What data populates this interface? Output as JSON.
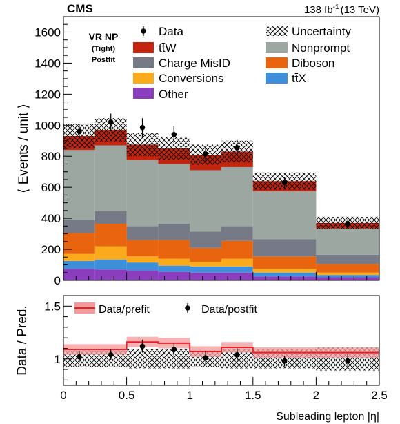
{
  "header": {
    "experiment": "CMS",
    "lumi_prefix": "138 fb",
    "lumi_exp": "-1",
    "lumi_suffix": "(13 TeV)"
  },
  "region": {
    "line1": "VR NP",
    "line2": "(Tight)",
    "line3": "Postfit"
  },
  "axes": {
    "xlabel": "Subleading lepton |η|",
    "ylabel_top": "⟨ Events / unit ⟩",
    "ylabel_bottom": "Data / Pred."
  },
  "legend_top": {
    "data": "Data",
    "uncertainty": "Uncertainty",
    "ttw": "tt̄W",
    "nonprompt": "Nonprompt",
    "chargemisid": "Charge MisID",
    "diboson": "Diboson",
    "conversions": "Conversions",
    "ttx": "tt̄X",
    "other": "Other"
  },
  "legend_bottom": {
    "prefit": "Data/prefit",
    "postfit": "Data/postfit"
  },
  "colors": {
    "other": "#8a3dbd",
    "ttx": "#3d8fd9",
    "conversions": "#fbaa1b",
    "diboson": "#e8640e",
    "chargemisid": "#767a87",
    "nonprompt": "#9da7a1",
    "ttw": "#c3250e",
    "prefit_band": "#f49a9a",
    "prefit_line": "#e8202a"
  },
  "chart_data": [
    {
      "type": "bar",
      "stacked": true,
      "bin_edges": [
        0,
        0.25,
        0.5,
        0.75,
        1.0,
        1.25,
        1.5,
        2.0,
        2.5
      ],
      "xlim": [
        0,
        2.5
      ],
      "ylim": [
        0,
        1700
      ],
      "yticks": [
        0,
        200,
        400,
        600,
        800,
        1000,
        1200,
        1400,
        1600
      ],
      "xticks": [
        0,
        0.5,
        1,
        1.5,
        2,
        2.5
      ],
      "series": [
        {
          "name": "Other",
          "values": [
            75,
            70,
            65,
            55,
            50,
            50,
            25,
            20
          ]
        },
        {
          "name": "tt̄X",
          "values": [
            50,
            65,
            50,
            40,
            40,
            40,
            25,
            15
          ]
        },
        {
          "name": "Conversions",
          "values": [
            45,
            85,
            40,
            45,
            30,
            50,
            25,
            15
          ]
        },
        {
          "name": "Diboson",
          "values": [
            135,
            145,
            105,
            120,
            90,
            115,
            80,
            55
          ]
        },
        {
          "name": "Charge MisID",
          "values": [
            85,
            80,
            90,
            105,
            105,
            95,
            110,
            60
          ]
        },
        {
          "name": "Nonprompt",
          "values": [
            450,
            425,
            425,
            385,
            395,
            380,
            310,
            170
          ]
        },
        {
          "name": "tt̄W",
          "values": [
            90,
            100,
            100,
            100,
            100,
            100,
            65,
            35
          ]
        }
      ],
      "uncertainty": [
        80,
        75,
        75,
        75,
        65,
        70,
        55,
        40
      ],
      "data": {
        "name": "Data",
        "x": [
          0.125,
          0.375,
          0.625,
          0.875,
          1.125,
          1.375,
          1.75,
          2.25
        ],
        "y": [
          960,
          1020,
          985,
          940,
          815,
          855,
          630,
          365
        ],
        "err": [
          45,
          55,
          60,
          55,
          50,
          50,
          35,
          30
        ]
      }
    },
    {
      "type": "line",
      "ylim": [
        0.75,
        1.6
      ],
      "yticks": [
        1,
        1.5
      ],
      "xlabel": "Subleading lepton |η|",
      "ylabel": "Data / Pred.",
      "prefit": {
        "name": "Data/prefit",
        "values": [
          1.09,
          1.09,
          1.16,
          1.15,
          1.07,
          1.11,
          1.06,
          1.06
        ],
        "band": [
          0.05,
          0.05,
          0.05,
          0.05,
          0.05,
          0.05,
          0.05,
          0.05
        ]
      },
      "postfit_band": [
        0.08,
        0.08,
        0.09,
        0.09,
        0.08,
        0.09,
        0.09,
        0.11
      ],
      "postfit": {
        "name": "Data/postfit",
        "x": [
          0.125,
          0.375,
          0.625,
          0.875,
          1.125,
          1.375,
          1.75,
          2.25
        ],
        "y": [
          1.02,
          1.04,
          1.12,
          1.09,
          1.01,
          1.04,
          0.98,
          0.98
        ],
        "err": [
          0.05,
          0.05,
          0.06,
          0.06,
          0.06,
          0.06,
          0.05,
          0.07
        ]
      }
    }
  ]
}
